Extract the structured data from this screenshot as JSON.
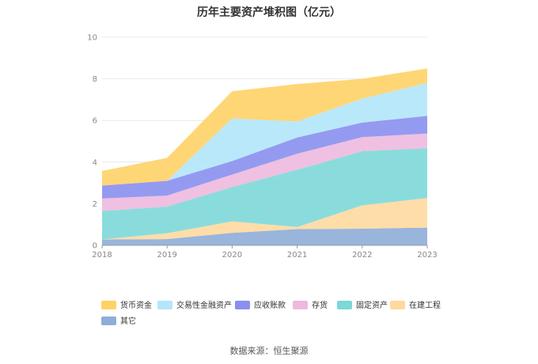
{
  "chart_data": {
    "type": "area",
    "stacked": true,
    "title": "历年主要资产堆积图（亿元）",
    "x": [
      "2018",
      "2019",
      "2020",
      "2021",
      "2022",
      "2023"
    ],
    "ylim": [
      0,
      10
    ],
    "yticks": [
      "0",
      "2",
      "4",
      "6",
      "8",
      "10"
    ],
    "grid": true,
    "legend_position": "bottom",
    "series": [
      {
        "name": "其它",
        "color": "#8EADD8",
        "values": [
          0.28,
          0.3,
          0.6,
          0.78,
          0.8,
          0.85
        ]
      },
      {
        "name": "在建工程",
        "color": "#FFD99E",
        "values": [
          0.0,
          0.28,
          0.55,
          0.1,
          1.12,
          1.42
        ]
      },
      {
        "name": "固定资产",
        "color": "#7DD8D8",
        "values": [
          1.37,
          1.28,
          1.65,
          2.75,
          2.6,
          2.4
        ]
      },
      {
        "name": "存货",
        "color": "#EDB9DE",
        "values": [
          0.6,
          0.53,
          0.6,
          0.77,
          0.68,
          0.7
        ]
      },
      {
        "name": "应收账款",
        "color": "#8A8FEF",
        "values": [
          0.62,
          0.71,
          0.65,
          0.78,
          0.7,
          0.85
        ]
      },
      {
        "name": "交易性金融资产",
        "color": "#B3E6FB",
        "values": [
          0.0,
          0.0,
          2.05,
          0.77,
          1.15,
          1.58
        ]
      },
      {
        "name": "货币资金",
        "color": "#FFD166",
        "values": [
          0.7,
          1.1,
          1.3,
          1.8,
          0.95,
          0.7
        ]
      }
    ],
    "legend_order": [
      "货币资金",
      "交易性金融资产",
      "应收账款",
      "存货",
      "固定资产",
      "在建工程",
      "其它"
    ],
    "source": "数据来源：恒生聚源"
  }
}
